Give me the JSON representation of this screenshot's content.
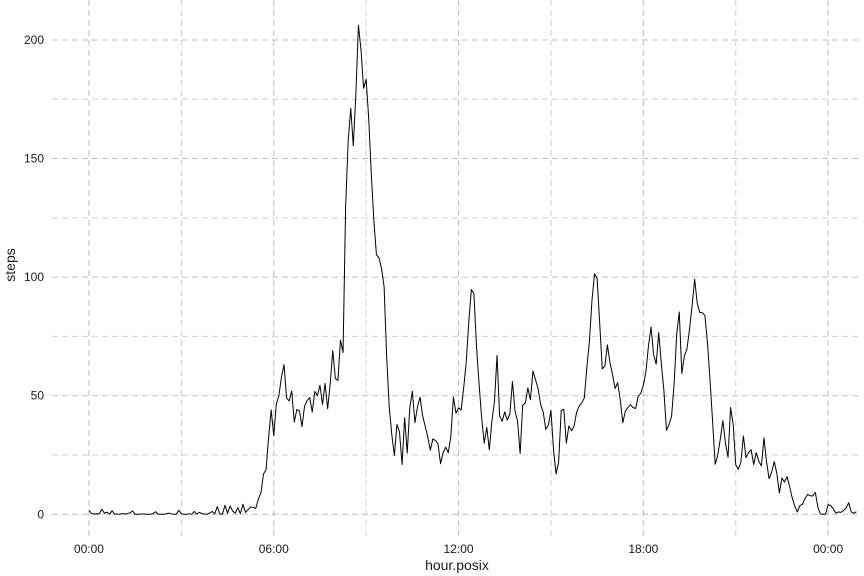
{
  "chart_data": {
    "type": "line",
    "title": "",
    "xlabel": "hour.posix",
    "ylabel": "steps",
    "xlim_hours": [
      -1.2,
      25.1
    ],
    "ylim": [
      -10,
      216
    ],
    "x_ticks": [
      {
        "hours": 0,
        "label": "00:00"
      },
      {
        "hours": 6,
        "label": "06:00"
      },
      {
        "hours": 12,
        "label": "12:00"
      },
      {
        "hours": 18,
        "label": "18:00"
      },
      {
        "hours": 24,
        "label": "00:00"
      }
    ],
    "y_ticks": [
      0,
      50,
      100,
      150,
      200
    ],
    "grid": "dashed major and minor",
    "series": [
      {
        "interval_minutes": 5,
        "start": "00:00",
        "values": [
          1.7,
          0.3,
          0.1,
          0.2,
          0.1,
          2.1,
          0.5,
          0.9,
          0,
          1.5,
          0.1,
          0.1,
          0,
          0.3,
          0.1,
          0.3,
          0.6,
          1.4,
          0,
          0,
          0,
          0.2,
          0,
          0,
          0,
          0.3,
          1.1,
          0,
          0,
          0,
          0.2,
          0.5,
          0.2,
          0,
          0,
          1.7,
          0.2,
          0,
          0,
          0.2,
          0,
          1.2,
          0.1,
          0.8,
          0.3,
          0.1,
          0,
          0.5,
          1.2,
          0.2,
          3.2,
          0.1,
          0,
          3.8,
          0.4,
          3.5,
          1.3,
          0.5,
          2.8,
          0.2,
          4.2,
          0.8,
          2.0,
          3.1,
          2.9,
          2.5,
          6.4,
          9.0,
          17.0,
          18.8,
          32.5,
          44.0,
          33.2,
          46.5,
          50.0,
          57.8,
          63.1,
          49.0,
          47.8,
          52.0,
          38.9,
          44.2,
          43.6,
          37.0,
          45.5,
          48.0,
          49.2,
          43.1,
          51.8,
          50.1,
          54.4,
          46.3,
          55.2,
          44.5,
          55.1,
          69.0,
          57.2,
          56.4,
          73.5,
          68.2,
          129.4,
          157.5,
          171.2,
          155.4,
          177.3,
          206.2,
          195.9,
          179.6,
          183.4,
          167.0,
          143.5,
          124.0,
          109.5,
          108.1,
          103.7,
          95.9,
          66.2,
          45.2,
          33.5,
          24.8,
          37.9,
          34.7,
          21.0,
          40.7,
          25.8,
          44.8,
          51.9,
          38.6,
          45.3,
          49.4,
          41.5,
          37.2,
          32.7,
          27.0,
          31.8,
          31.1,
          29.7,
          21.3,
          26.0,
          28.3,
          26.0,
          32.9,
          49.4,
          42.6,
          44.9,
          43.9,
          53.2,
          64.2,
          81.2,
          94.8,
          93.0,
          70.6,
          55.0,
          40.7,
          30.0,
          36.6,
          27.2,
          39.4,
          47.5,
          67.0,
          41.6,
          39.2,
          43.2,
          39.7,
          42.3,
          56.0,
          43.6,
          39.2,
          25.6,
          46.0,
          46.8,
          53.3,
          48.3,
          60.4,
          56.7,
          53.0,
          46.2,
          43.0,
          35.8,
          37.6,
          43.8,
          27.3,
          17.0,
          22.0,
          43.7,
          44.3,
          30.0,
          37.3,
          35.2,
          37.1,
          43.0,
          45.7,
          47.0,
          49.0,
          62.0,
          73.0,
          90.4,
          101.4,
          99.4,
          80.5,
          61.3,
          62.4,
          71.4,
          64.0,
          58.9,
          53.0,
          55.5,
          48.3,
          38.6,
          43.5,
          45.1,
          46.2,
          45.0,
          44.6,
          49.7,
          51.0,
          54.4,
          60.0,
          71.0,
          79.0,
          67.4,
          63.3,
          76.6,
          63.6,
          52.4,
          35.4,
          37.9,
          41.3,
          55.0,
          76.0,
          85.3,
          59.4,
          66.8,
          69.7,
          78.0,
          87.9,
          99.1,
          89.0,
          85.1,
          85.0,
          83.8,
          72.2,
          56.4,
          38.9,
          21.1,
          25.0,
          31.8,
          39.5,
          30.0,
          24.1,
          45.0,
          37.8,
          20.9,
          19.0,
          22.0,
          33.0,
          23.9,
          26.0,
          27.2,
          21.0,
          26.0,
          22.3,
          20.4,
          32.2,
          22.2,
          15.0,
          17.8,
          22.2,
          17.3,
          9.0,
          15.3,
          13.6,
          15.8,
          11.8,
          7.0,
          3.4,
          1.0,
          3.7,
          4.2,
          6.6,
          8.4,
          7.8,
          7.7,
          9.3,
          3.0,
          0.1,
          0,
          0,
          4.1,
          3.6,
          2.3,
          0.5,
          1.0,
          0.8,
          1.6,
          2.6,
          4.9,
          1.0,
          0.4,
          1.1
        ]
      }
    ]
  }
}
